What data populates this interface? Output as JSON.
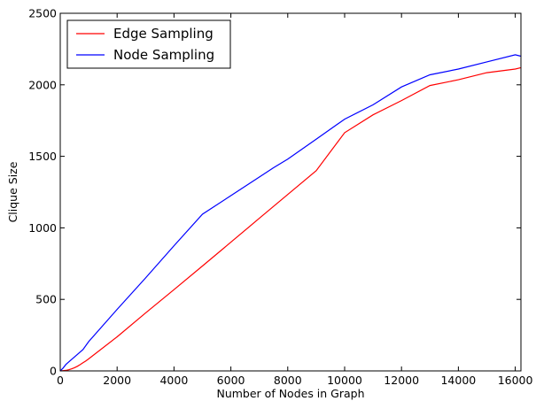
{
  "chart_data": {
    "type": "line",
    "title": "",
    "xlabel": "Number of Nodes in Graph",
    "ylabel": "Clique Size",
    "xlim": [
      0,
      16200
    ],
    "ylim": [
      0,
      2500
    ],
    "xticks": [
      0,
      2000,
      4000,
      6000,
      8000,
      10000,
      12000,
      14000,
      16000
    ],
    "yticks": [
      0,
      500,
      1000,
      1500,
      2000,
      2500
    ],
    "grid": false,
    "legend_position": "top-left",
    "series": [
      {
        "name": "Edge Sampling",
        "color": "#ff0000",
        "x": [
          0,
          100,
          200,
          300,
          400,
          500,
          600,
          700,
          800,
          900,
          1000,
          2000,
          3000,
          4000,
          5000,
          6000,
          7000,
          8000,
          9000,
          10000,
          11000,
          12000,
          13000,
          14000,
          15000,
          16000,
          16200
        ],
        "y": [
          0,
          2,
          4,
          8,
          14,
          22,
          32,
          44,
          57,
          70,
          84,
          238,
          405,
          568,
          733,
          900,
          1067,
          1233,
          1400,
          1665,
          1790,
          1890,
          1995,
          2035,
          2085,
          2110,
          2120
        ]
      },
      {
        "name": "Node Sampling",
        "color": "#0000ff",
        "x": [
          0,
          100,
          200,
          400,
          600,
          800,
          1000,
          2000,
          3000,
          4000,
          5000,
          6000,
          7000,
          7500,
          8000,
          9000,
          10000,
          11000,
          12000,
          13000,
          14000,
          15000,
          16000,
          16200
        ],
        "y": [
          0,
          20,
          45,
          80,
          115,
          150,
          205,
          430,
          650,
          875,
          1095,
          1225,
          1355,
          1420,
          1480,
          1620,
          1760,
          1860,
          1985,
          2070,
          2110,
          2160,
          2210,
          2200
        ]
      }
    ]
  }
}
